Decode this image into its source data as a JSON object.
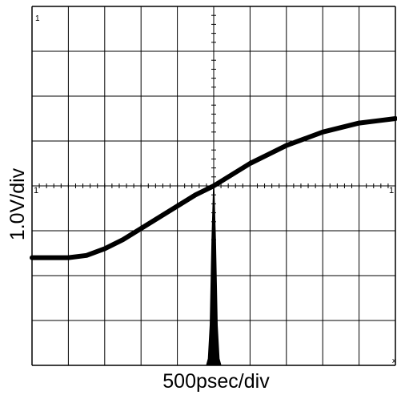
{
  "chart_data": {
    "type": "line",
    "title": "",
    "xlabel": "500psec/div",
    "ylabel": "1.0V/div",
    "grid": true,
    "xlim": [
      -5,
      5
    ],
    "ylim": [
      -4,
      4
    ],
    "divisions": {
      "x": 10,
      "y": 8
    },
    "markers": {
      "top_left": "1",
      "center_left": "1",
      "right_center": "1",
      "bottom_right": "x"
    },
    "series": [
      {
        "role": "waveform",
        "x": [
          -5.0,
          -4.5,
          -4.0,
          -3.5,
          -3.0,
          -2.5,
          -2.0,
          -1.5,
          -1.0,
          -0.5,
          0.0,
          0.5,
          1.0,
          1.5,
          2.0,
          2.5,
          3.0,
          3.5,
          4.0,
          4.5,
          5.0
        ],
        "y": [
          -1.6,
          -1.6,
          -1.6,
          -1.55,
          -1.4,
          -1.2,
          -0.95,
          -0.7,
          -0.45,
          -0.2,
          0.0,
          0.25,
          0.5,
          0.7,
          0.9,
          1.05,
          1.2,
          1.3,
          1.4,
          1.45,
          1.5
        ]
      },
      {
        "role": "histogram",
        "x": [
          -0.2,
          -0.15,
          -0.1,
          -0.05,
          0.0,
          0.05,
          0.1,
          0.15,
          0.2
        ],
        "y": [
          -4.0,
          -3.85,
          -3.1,
          -1.2,
          0.15,
          -1.2,
          -3.1,
          -3.85,
          -4.0
        ]
      }
    ]
  }
}
